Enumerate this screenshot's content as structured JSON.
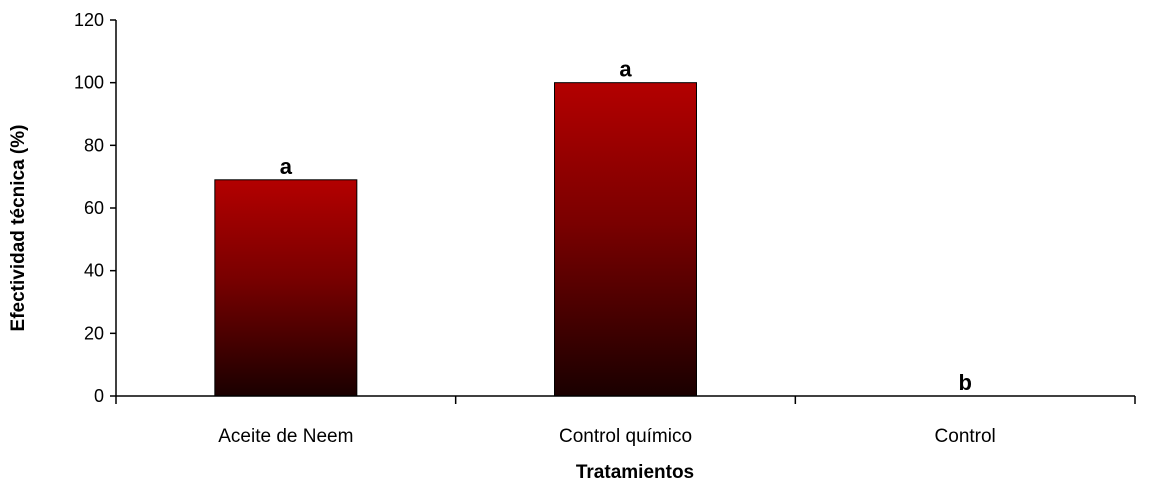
{
  "chart_data": {
    "type": "bar",
    "title": "",
    "xlabel": "Tratamientos",
    "ylabel": "Efectividad técnica (%)",
    "ylim": [
      0,
      120
    ],
    "yticks": [
      0,
      20,
      40,
      60,
      80,
      100,
      120
    ],
    "categories": [
      "Aceite de Neem",
      "Control químico",
      "Control"
    ],
    "values": [
      69,
      100,
      0
    ],
    "significance_letters": [
      "a",
      "a",
      "b"
    ],
    "grid": false,
    "legend": "none",
    "colors": {
      "bar_top": "#b30000",
      "bar_bottom": "#1a0000",
      "axis": "#000000"
    }
  }
}
